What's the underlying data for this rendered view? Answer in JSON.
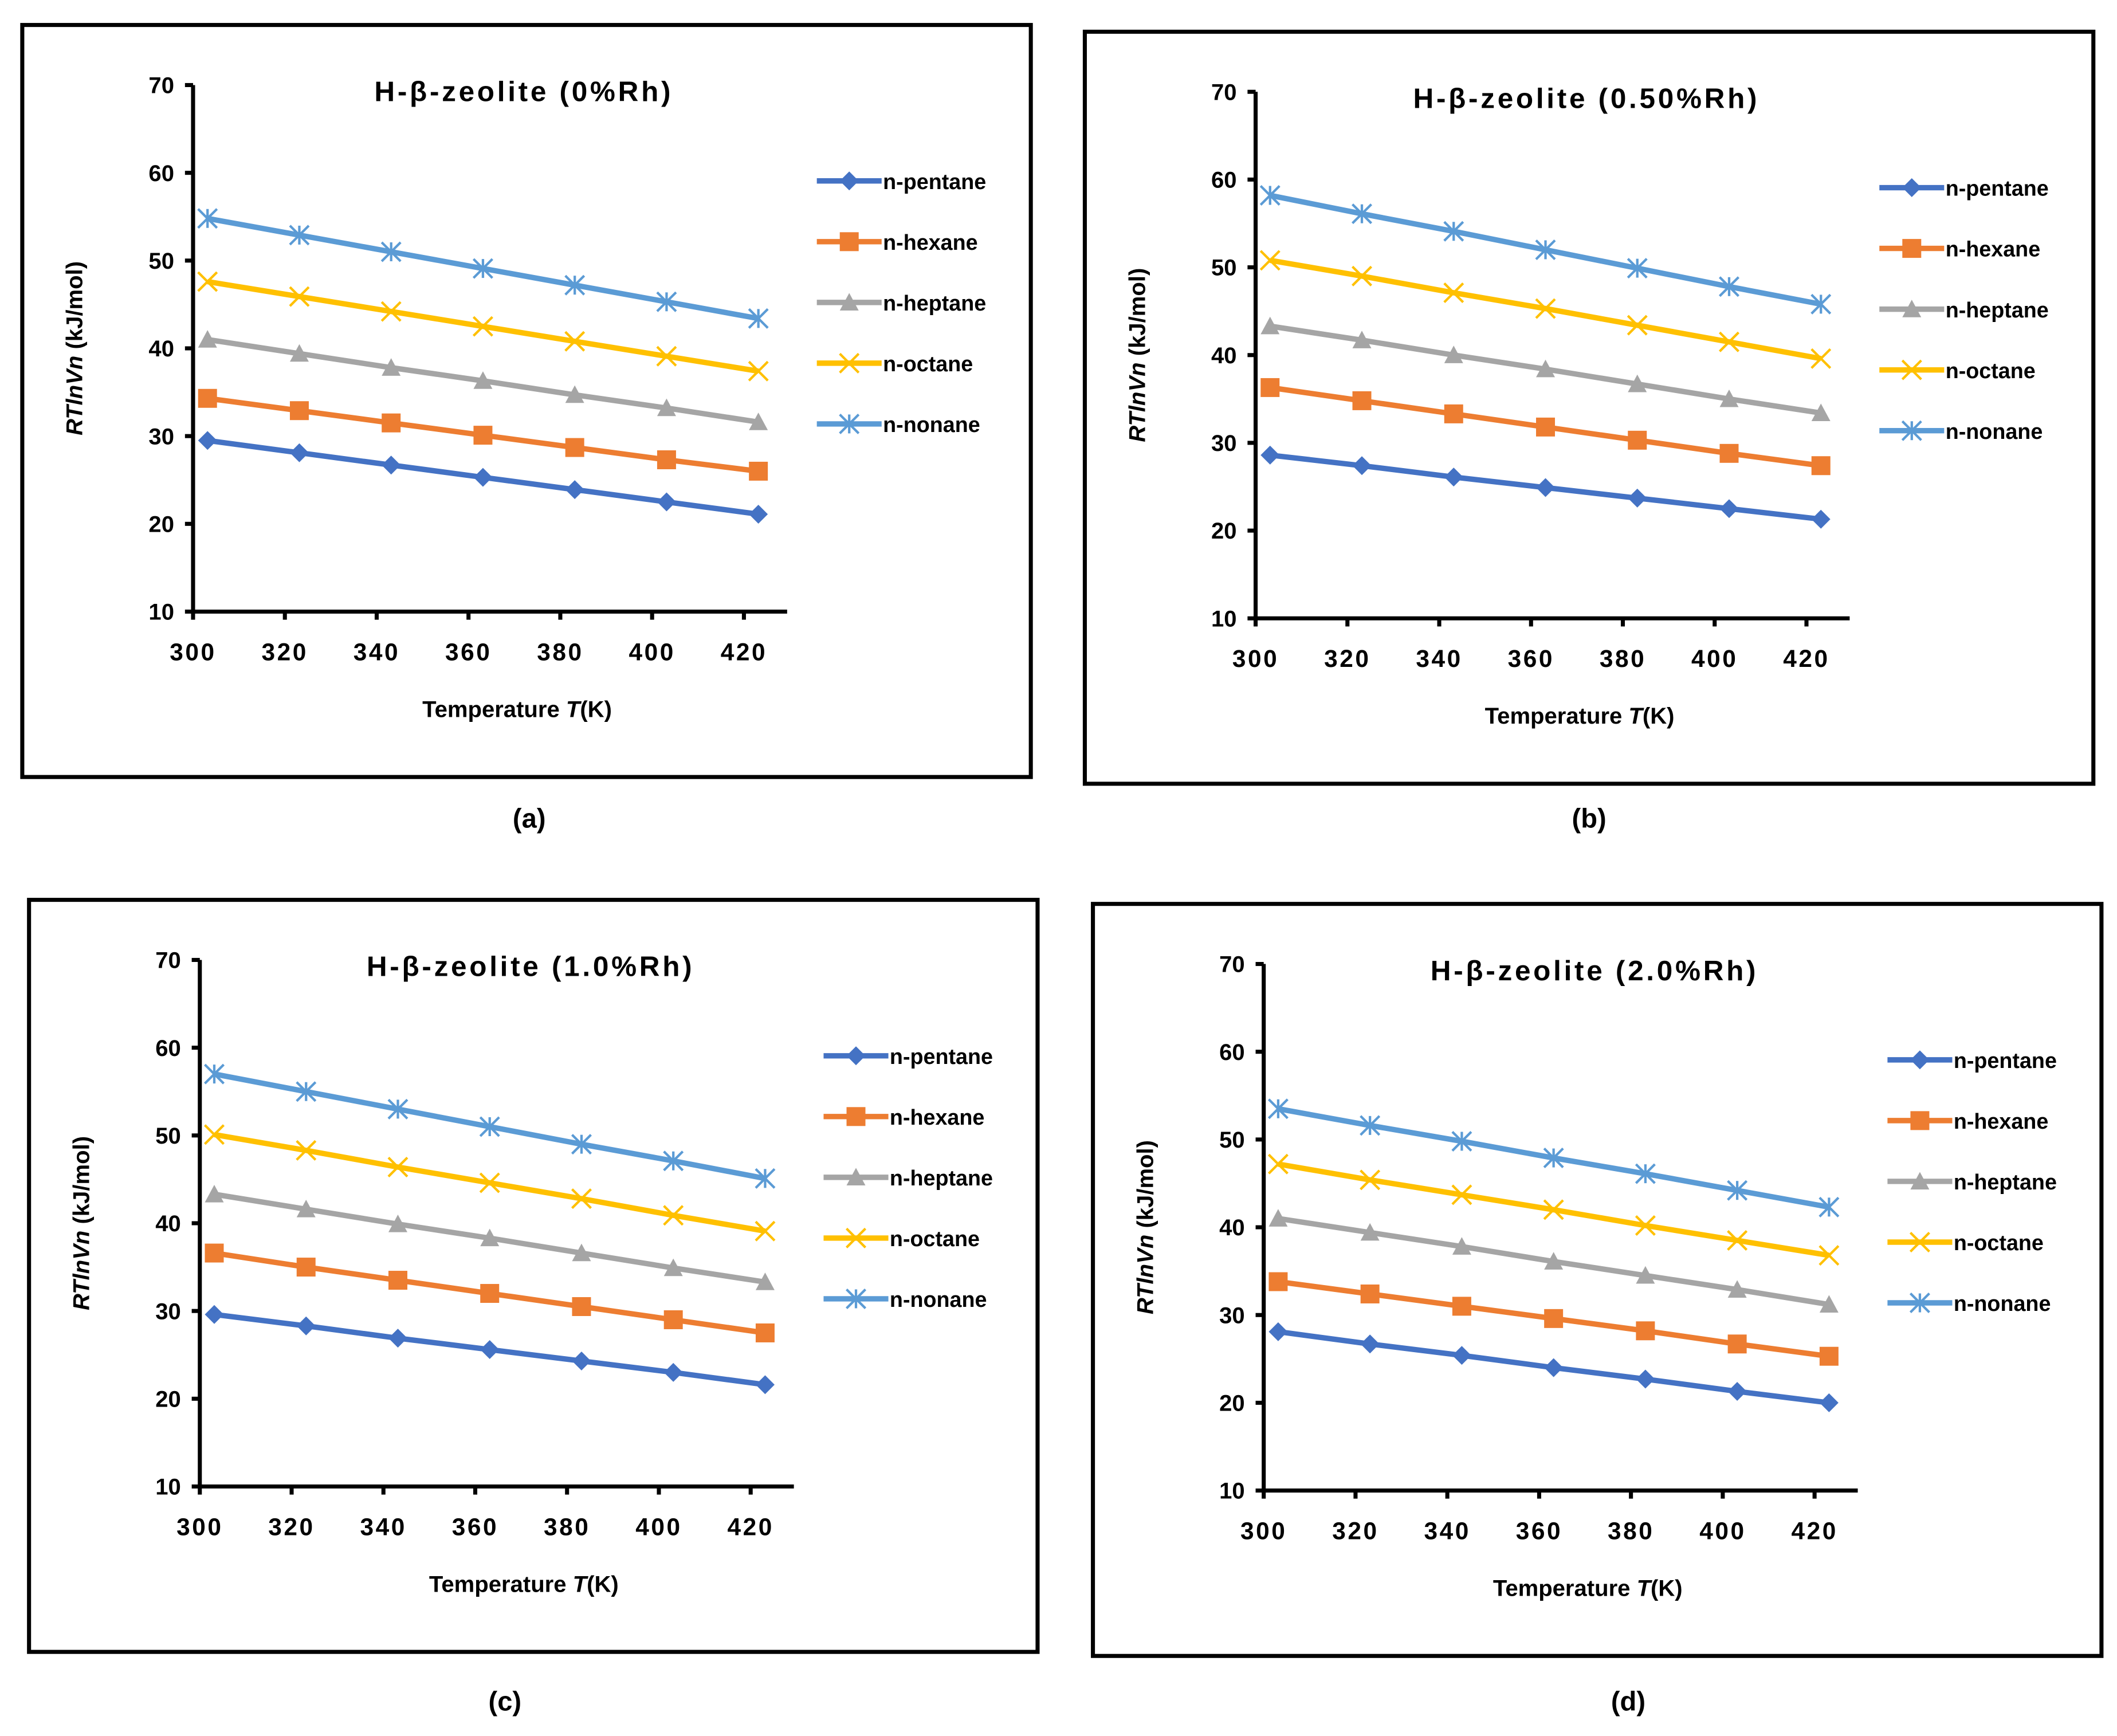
{
  "chart_data": [
    {
      "type": "line",
      "panel": "(a)",
      "title": "H-β-zeolite (0%Rh)",
      "xlabel": "Temperature T(K)",
      "ylabel": "RTlnVn (kJ/mol)",
      "xlim": [
        300,
        430
      ],
      "ylim": [
        10,
        70
      ],
      "xticks": [
        300,
        320,
        340,
        360,
        380,
        400,
        420
      ],
      "yticks": [
        10,
        20,
        30,
        40,
        50,
        60,
        70
      ],
      "legend_position": "right",
      "x": [
        303.15,
        323.15,
        343.15,
        363.15,
        383.15,
        403.15,
        423.15
      ],
      "series": [
        {
          "name": "n-pentane",
          "values": [
            29.5,
            28.1,
            26.7,
            25.3,
            23.9,
            22.5,
            21.1
          ]
        },
        {
          "name": "n-hexane",
          "values": [
            34.3,
            32.9,
            31.5,
            30.1,
            28.7,
            27.3,
            26.0
          ]
        },
        {
          "name": "n-heptane",
          "values": [
            41.0,
            39.4,
            37.8,
            36.3,
            34.7,
            33.2,
            31.6
          ]
        },
        {
          "name": "n-octane",
          "values": [
            47.6,
            45.9,
            44.2,
            42.5,
            40.8,
            39.1,
            37.4
          ]
        },
        {
          "name": "n-nonane",
          "values": [
            54.8,
            52.9,
            51.0,
            49.1,
            47.2,
            45.3,
            43.4
          ]
        }
      ]
    },
    {
      "type": "line",
      "panel": "(b)",
      "title": "H-β-zeolite (0.50%Rh)",
      "xlabel": "Temperature T(K)",
      "ylabel": "RTlnVn (kJ/mol)",
      "xlim": [
        300,
        430
      ],
      "ylim": [
        10,
        70
      ],
      "xticks": [
        300,
        320,
        340,
        360,
        380,
        400,
        420
      ],
      "yticks": [
        10,
        20,
        30,
        40,
        50,
        60,
        70
      ],
      "legend_position": "right",
      "x": [
        303.15,
        323.15,
        343.15,
        363.15,
        383.15,
        403.15,
        423.15
      ],
      "series": [
        {
          "name": "n-pentane",
          "values": [
            28.6,
            27.4,
            26.1,
            24.9,
            23.7,
            22.5,
            21.3
          ]
        },
        {
          "name": "n-hexane",
          "values": [
            36.3,
            34.8,
            33.3,
            31.8,
            30.3,
            28.8,
            27.4
          ]
        },
        {
          "name": "n-heptane",
          "values": [
            43.3,
            41.7,
            40.0,
            38.4,
            36.7,
            35.0,
            33.4
          ]
        },
        {
          "name": "n-octane",
          "values": [
            50.8,
            49.0,
            47.1,
            45.3,
            43.4,
            41.5,
            39.6
          ]
        },
        {
          "name": "n-nonane",
          "values": [
            58.2,
            56.1,
            54.1,
            52.0,
            49.9,
            47.8,
            45.8
          ]
        }
      ]
    },
    {
      "type": "line",
      "panel": "(c)",
      "title": "H-β-zeolite (1.0%Rh)",
      "xlabel": "Temperature T(K)",
      "ylabel": "RTlnVn (kJ/mol)",
      "xlim": [
        300,
        430
      ],
      "ylim": [
        10,
        70
      ],
      "xticks": [
        300,
        320,
        340,
        360,
        380,
        400,
        420
      ],
      "yticks": [
        10,
        20,
        30,
        40,
        50,
        60,
        70
      ],
      "legend_position": "right",
      "x": [
        303.15,
        323.15,
        343.15,
        363.15,
        383.15,
        403.15,
        423.15
      ],
      "series": [
        {
          "name": "n-pentane",
          "values": [
            29.6,
            28.3,
            26.9,
            25.6,
            24.3,
            23.0,
            21.6
          ]
        },
        {
          "name": "n-hexane",
          "values": [
            36.6,
            35.0,
            33.5,
            32.0,
            30.5,
            29.0,
            27.5
          ]
        },
        {
          "name": "n-heptane",
          "values": [
            43.3,
            41.6,
            39.9,
            38.3,
            36.6,
            34.9,
            33.3
          ]
        },
        {
          "name": "n-octane",
          "values": [
            50.1,
            48.3,
            46.4,
            44.6,
            42.8,
            40.9,
            39.1
          ]
        },
        {
          "name": "n-nonane",
          "values": [
            57.0,
            55.0,
            53.0,
            51.0,
            49.0,
            47.1,
            45.1
          ]
        }
      ]
    },
    {
      "type": "line",
      "panel": "(d)",
      "title": "H-β-zeolite (2.0%Rh)",
      "xlabel": "Temperature T(K)",
      "ylabel": "RTlnVn (kJ/mol)",
      "xlim": [
        300,
        430
      ],
      "ylim": [
        10,
        70
      ],
      "xticks": [
        300,
        320,
        340,
        360,
        380,
        400,
        420
      ],
      "yticks": [
        10,
        20,
        30,
        40,
        50,
        60,
        70
      ],
      "legend_position": "right",
      "x": [
        303.15,
        323.15,
        343.15,
        363.15,
        383.15,
        403.15,
        423.15
      ],
      "series": [
        {
          "name": "n-pentane",
          "values": [
            28.1,
            26.7,
            25.4,
            24.0,
            22.7,
            21.3,
            20.0
          ]
        },
        {
          "name": "n-hexane",
          "values": [
            33.8,
            32.4,
            31.0,
            29.6,
            28.2,
            26.7,
            25.3
          ]
        },
        {
          "name": "n-heptane",
          "values": [
            41.0,
            39.4,
            37.8,
            36.1,
            34.5,
            32.9,
            31.2
          ]
        },
        {
          "name": "n-octane",
          "values": [
            47.2,
            45.4,
            43.7,
            42.0,
            40.2,
            38.5,
            36.8
          ]
        },
        {
          "name": "n-nonane",
          "values": [
            53.5,
            51.6,
            49.8,
            47.9,
            46.1,
            44.2,
            42.3
          ]
        }
      ]
    }
  ],
  "series_style": [
    {
      "color": "#4472C4",
      "marker": "diamond"
    },
    {
      "color": "#ED7D31",
      "marker": "square"
    },
    {
      "color": "#A5A5A5",
      "marker": "triangle"
    },
    {
      "color": "#FFC000",
      "marker": "x"
    },
    {
      "color": "#5B9BD5",
      "marker": "asterisk"
    }
  ]
}
